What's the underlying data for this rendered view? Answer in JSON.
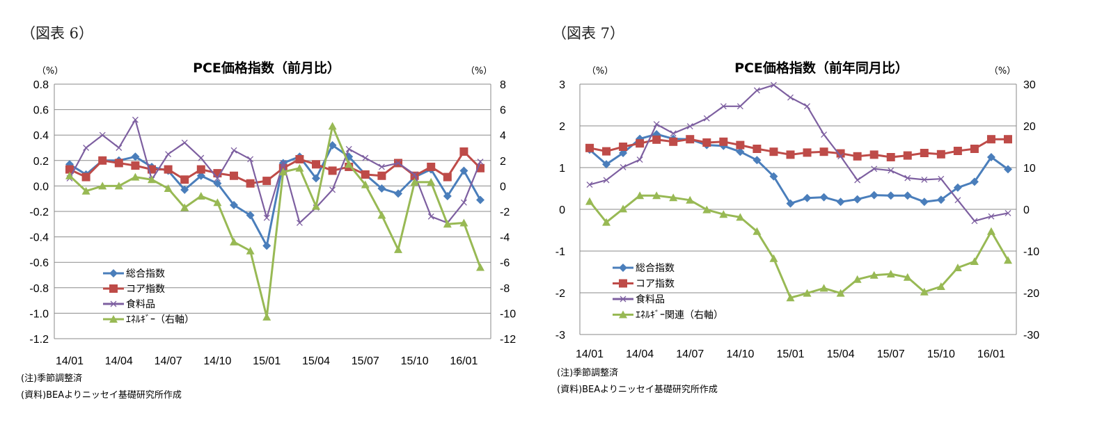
{
  "figures": [
    {
      "label": "（図表 6）",
      "note": "(注)季節調整済",
      "source": "(資料)BEAよりニッセイ基礎研究所作成"
    },
    {
      "label": "（図表 7）",
      "note": "(注)季節調整済",
      "source": "(資料)BEAよりニッセイ基礎研究所作成"
    }
  ],
  "colors": {
    "total": "#4a7ebb",
    "core": "#be4b48",
    "food": "#7d5fa0",
    "energy": "#98b954"
  },
  "chart_data": [
    {
      "type": "line",
      "title": "PCE価格指数（前月比）",
      "ylabel": "（%）",
      "y2label": "（%）",
      "ylim": [
        -1.2,
        0.8
      ],
      "y2lim": [
        -12,
        8
      ],
      "yticks": [
        "0.8",
        "0.6",
        "0.4",
        "0.2",
        "0.0",
        "-0.2",
        "-0.4",
        "-0.6",
        "-0.8",
        "-1.0",
        "-1.2"
      ],
      "y2ticks": [
        "8",
        "6",
        "4",
        "2",
        "0",
        "-2",
        "-4",
        "-6",
        "-8",
        "-10",
        "-12"
      ],
      "grid": true,
      "legend": "bottom-left",
      "x": [
        "14/01",
        "14/02",
        "14/03",
        "14/04",
        "14/05",
        "14/06",
        "14/07",
        "14/08",
        "14/09",
        "14/10",
        "14/11",
        "14/12",
        "15/01",
        "15/02",
        "15/03",
        "15/04",
        "15/05",
        "15/06",
        "15/07",
        "15/08",
        "15/09",
        "15/10",
        "15/11",
        "15/12",
        "16/01",
        "16/02"
      ],
      "xticks": [
        "14/01",
        "14/04",
        "14/07",
        "14/10",
        "15/01",
        "15/04",
        "15/07",
        "15/10",
        "16/01"
      ],
      "series": [
        {
          "name": "総合指数",
          "axis": "left",
          "marker": "diamond",
          "values": [
            0.17,
            0.09,
            0.2,
            0.2,
            0.23,
            0.15,
            0.12,
            -0.03,
            0.08,
            0.02,
            -0.15,
            -0.23,
            -0.47,
            0.18,
            0.23,
            0.06,
            0.32,
            0.23,
            0.09,
            -0.02,
            -0.06,
            0.07,
            0.13,
            -0.08,
            0.12,
            -0.11
          ]
        },
        {
          "name": "コア指数",
          "axis": "left",
          "marker": "square",
          "values": [
            0.13,
            0.07,
            0.2,
            0.18,
            0.16,
            0.13,
            0.13,
            0.05,
            0.13,
            0.1,
            0.08,
            0.02,
            0.04,
            0.14,
            0.21,
            0.17,
            0.12,
            0.15,
            0.09,
            0.08,
            0.18,
            0.08,
            0.15,
            0.07,
            0.27,
            0.14
          ]
        },
        {
          "name": "食料品",
          "axis": "left",
          "marker": "x",
          "values": [
            0.06,
            0.3,
            0.4,
            0.3,
            0.52,
            0.05,
            0.25,
            0.34,
            0.22,
            0.06,
            0.28,
            0.21,
            -0.25,
            0.18,
            -0.29,
            -0.17,
            -0.03,
            0.29,
            0.22,
            0.15,
            0.18,
            0.09,
            -0.24,
            -0.29,
            -0.13,
            0.19
          ]
        },
        {
          "name": "ｴﾈﾙｷﾞｰ（右軸）",
          "axis": "right",
          "marker": "triangle",
          "values": [
            0.8,
            -0.4,
            0.0,
            0.0,
            0.7,
            0.5,
            -0.2,
            -1.7,
            -0.8,
            -1.3,
            -4.4,
            -5.1,
            -10.3,
            1.1,
            1.4,
            -1.6,
            4.7,
            1.7,
            0.1,
            -2.3,
            -5.0,
            0.3,
            0.3,
            -3.0,
            -2.9,
            -6.4
          ]
        }
      ]
    },
    {
      "type": "line",
      "title": "PCE価格指数（前年同月比）",
      "ylabel": "（%）",
      "y2label": "（%）",
      "ylim": [
        -3,
        3
      ],
      "y2lim": [
        -30,
        30
      ],
      "yticks": [
        "3",
        "2",
        "1",
        "0",
        "-1",
        "-2",
        "-3"
      ],
      "y2ticks": [
        "30",
        "20",
        "10",
        "0",
        "-10",
        "-20",
        "-30"
      ],
      "grid": true,
      "legend": "bottom-left",
      "x": [
        "14/01",
        "14/02",
        "14/03",
        "14/04",
        "14/05",
        "14/06",
        "14/07",
        "14/08",
        "14/09",
        "14/10",
        "14/11",
        "14/12",
        "15/01",
        "15/02",
        "15/03",
        "15/04",
        "15/05",
        "15/06",
        "15/07",
        "15/08",
        "15/09",
        "15/10",
        "15/11",
        "15/12",
        "16/01",
        "16/02"
      ],
      "xticks": [
        "14/01",
        "14/04",
        "14/07",
        "14/10",
        "15/01",
        "15/04",
        "15/07",
        "15/10",
        "16/01"
      ],
      "series": [
        {
          "name": "総合指数",
          "axis": "left",
          "marker": "diamond",
          "values": [
            1.43,
            1.08,
            1.35,
            1.69,
            1.8,
            1.69,
            1.68,
            1.54,
            1.52,
            1.38,
            1.18,
            0.79,
            0.14,
            0.27,
            0.29,
            0.18,
            0.24,
            0.34,
            0.33,
            0.33,
            0.18,
            0.23,
            0.52,
            0.66,
            1.25,
            0.96
          ]
        },
        {
          "name": "コア指数",
          "axis": "left",
          "marker": "square",
          "values": [
            1.47,
            1.39,
            1.5,
            1.58,
            1.67,
            1.62,
            1.68,
            1.6,
            1.62,
            1.54,
            1.45,
            1.38,
            1.31,
            1.36,
            1.38,
            1.34,
            1.27,
            1.31,
            1.25,
            1.29,
            1.35,
            1.32,
            1.4,
            1.45,
            1.68,
            1.68
          ]
        },
        {
          "name": "食料品",
          "axis": "left",
          "marker": "x",
          "values": [
            0.59,
            0.7,
            1.01,
            1.19,
            2.04,
            1.82,
            1.99,
            2.18,
            2.47,
            2.47,
            2.85,
            2.98,
            2.68,
            2.47,
            1.79,
            1.27,
            0.7,
            0.97,
            0.93,
            0.75,
            0.71,
            0.73,
            0.22,
            -0.28,
            -0.17,
            -0.09
          ]
        },
        {
          "name": "ｴﾈﾙｷﾞｰ関連（右軸）",
          "axis": "right",
          "marker": "triangle",
          "values": [
            1.9,
            -3.1,
            0.1,
            3.3,
            3.3,
            2.8,
            2.2,
            -0.1,
            -1.2,
            -1.9,
            -5.3,
            -11.8,
            -21.2,
            -20.1,
            -18.9,
            -20.1,
            -16.8,
            -15.8,
            -15.5,
            -16.3,
            -19.8,
            -18.5,
            -14.0,
            -12.5,
            -5.3,
            -12.2
          ]
        }
      ]
    }
  ]
}
